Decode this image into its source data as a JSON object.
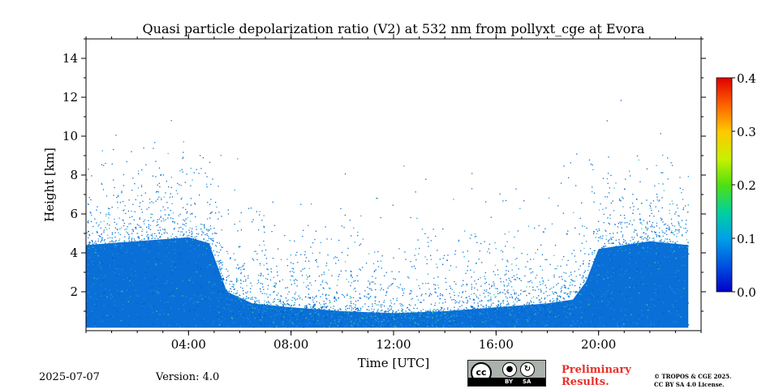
{
  "chart_data": {
    "type": "heatmap",
    "title": "Quasi particle depolarization ratio (V2) at 532 nm from pollyxt_cge at Evora",
    "xlabel": "Time [UTC]",
    "ylabel": "Height [km]",
    "xlim_hours": [
      0,
      24
    ],
    "ylim_km": [
      0,
      15
    ],
    "x_ticks": [
      "04:00",
      "08:00",
      "12:00",
      "16:00",
      "20:00"
    ],
    "x_tick_hours": [
      4,
      8,
      12,
      16,
      20
    ],
    "y_ticks": [
      2,
      4,
      6,
      8,
      10,
      12,
      14
    ],
    "colorbar": {
      "range": [
        0.0,
        0.4
      ],
      "ticks": [
        "0.0",
        "0.1",
        "0.2",
        "0.3",
        "0.4"
      ],
      "colormap": "jet"
    },
    "data_end_hour": 23.5,
    "dense_layer_top_km": [
      {
        "hour": 0,
        "km": 4.4
      },
      {
        "hour": 2,
        "km": 4.6
      },
      {
        "hour": 4,
        "km": 4.8
      },
      {
        "hour": 4.8,
        "km": 4.5
      },
      {
        "hour": 5.5,
        "km": 2.0
      },
      {
        "hour": 6.5,
        "km": 1.4
      },
      {
        "hour": 8,
        "km": 1.2
      },
      {
        "hour": 10,
        "km": 1.0
      },
      {
        "hour": 12,
        "km": 0.9
      },
      {
        "hour": 14,
        "km": 1.0
      },
      {
        "hour": 16,
        "km": 1.2
      },
      {
        "hour": 18,
        "km": 1.4
      },
      {
        "hour": 19,
        "km": 1.6
      },
      {
        "hour": 19.5,
        "km": 2.5
      },
      {
        "hour": 20,
        "km": 4.2
      },
      {
        "hour": 22,
        "km": 4.6
      },
      {
        "hour": 23.5,
        "km": 4.4
      }
    ],
    "dominant_color": "#0a6fd6"
  },
  "footer": {
    "date": "2025-07-07",
    "version": "Version: 4.0",
    "license_badge": {
      "by": "BY",
      "sa": "SA",
      "cc": "cc"
    },
    "preliminary": [
      "Preliminary",
      "Results."
    ],
    "copyright": [
      "© TROPOS & CGE 2025.",
      "CC BY SA 4.0 License."
    ]
  }
}
